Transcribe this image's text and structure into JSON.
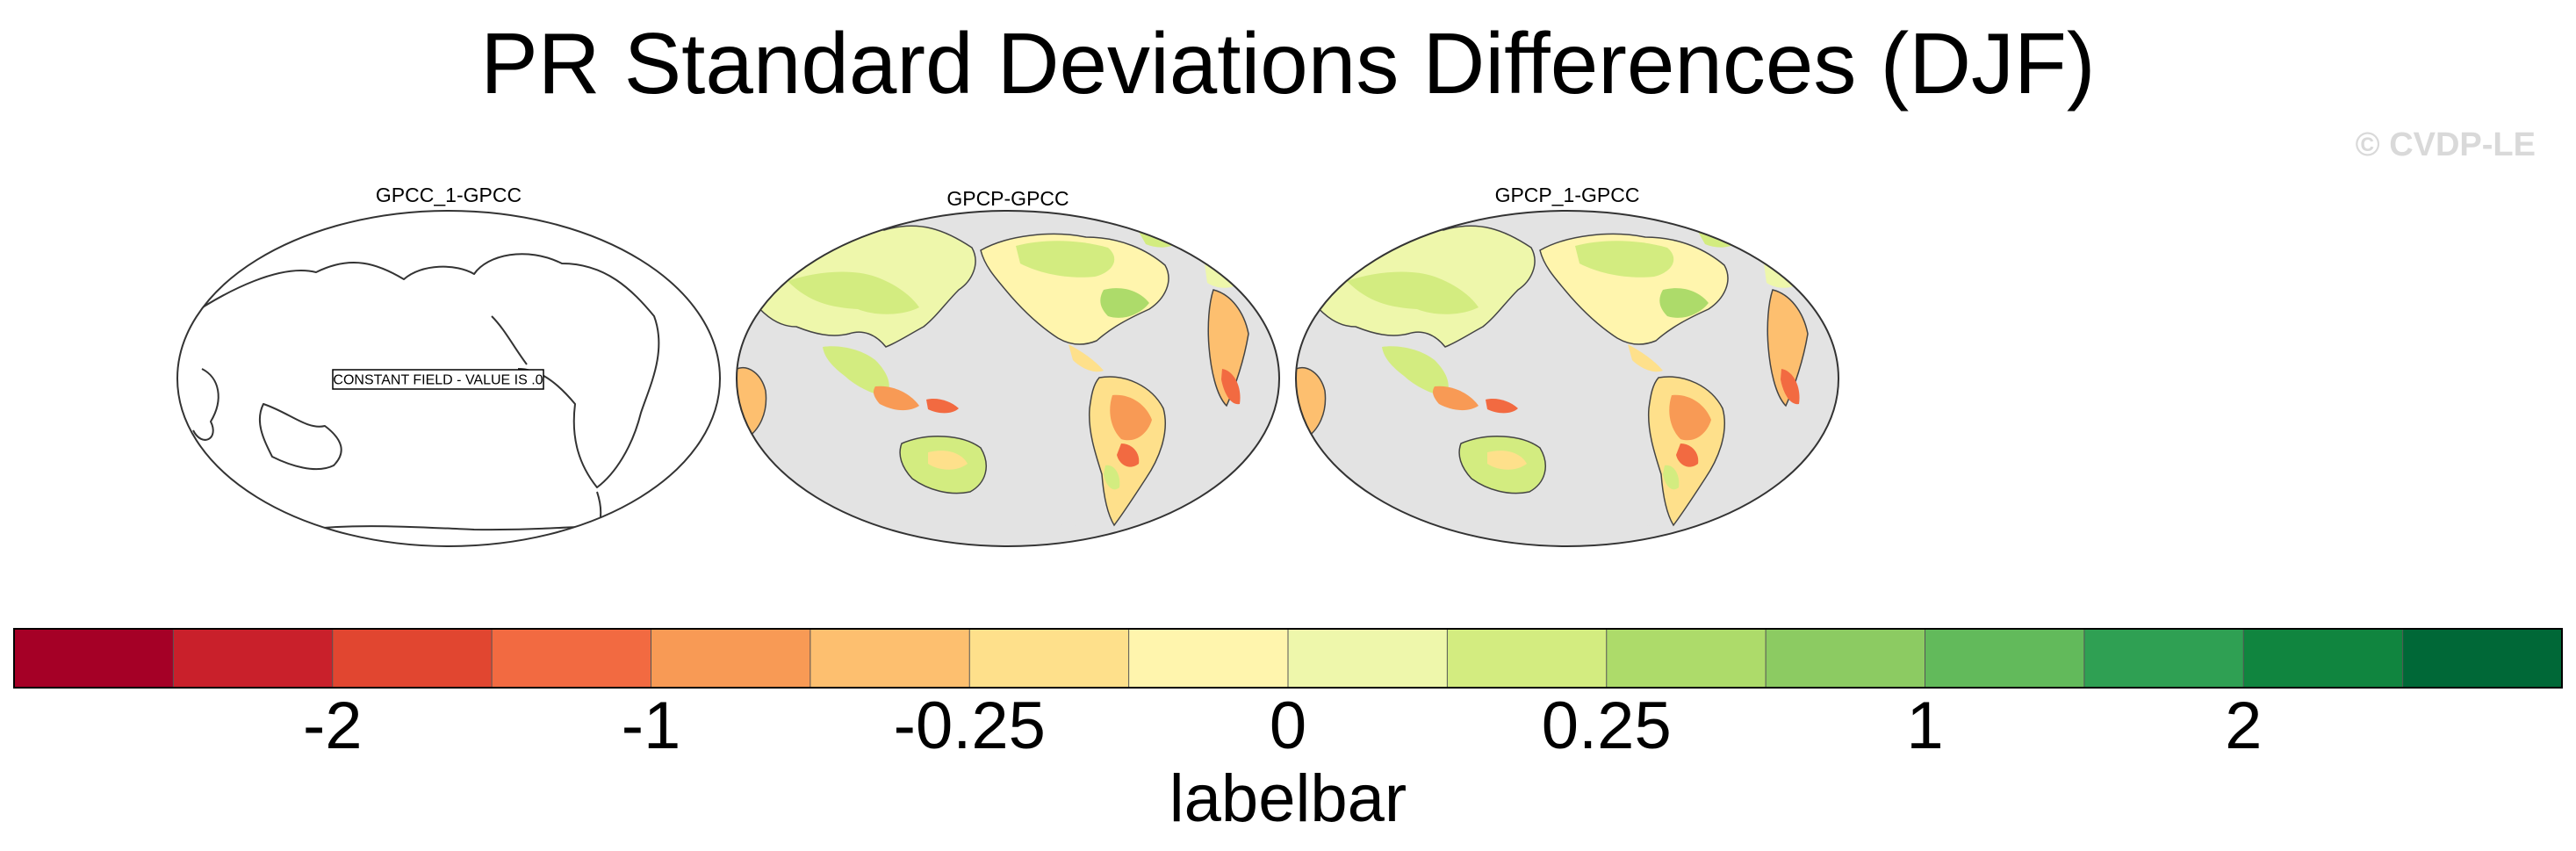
{
  "title": "PR Standard Deviations Differences (DJF)",
  "watermark": "© CVDP-LE",
  "panels": [
    {
      "title": "GPCC_1-GPCC",
      "fill": "none",
      "note": "CONSTANT FIELD - VALUE IS .0"
    },
    {
      "title": "GPCP-GPCC",
      "fill": "data"
    },
    {
      "title": "GPCP_1-GPCC",
      "fill": "data"
    }
  ],
  "colors": {
    "ocean_fill": "#e3e3e3",
    "coastline": "#2b2b2b",
    "missing_land": "#ffffff"
  },
  "labelbar": {
    "title": "labelbar",
    "colors": [
      "#a50026",
      "#c9202b",
      "#e14630",
      "#f26a41",
      "#f89a55",
      "#fdbf6f",
      "#fee08b",
      "#fff5ad",
      "#eef7ab",
      "#d3ec80",
      "#addb6a",
      "#8ccb62",
      "#62ba5b",
      "#2fa053",
      "#10853f",
      "#006837"
    ],
    "tick_labels": [
      "-2",
      "-1",
      "-0.25",
      "0",
      "0.25",
      "1",
      "2"
    ],
    "tick_boundaries": [
      2,
      4,
      6,
      8,
      10,
      12,
      14
    ]
  }
}
